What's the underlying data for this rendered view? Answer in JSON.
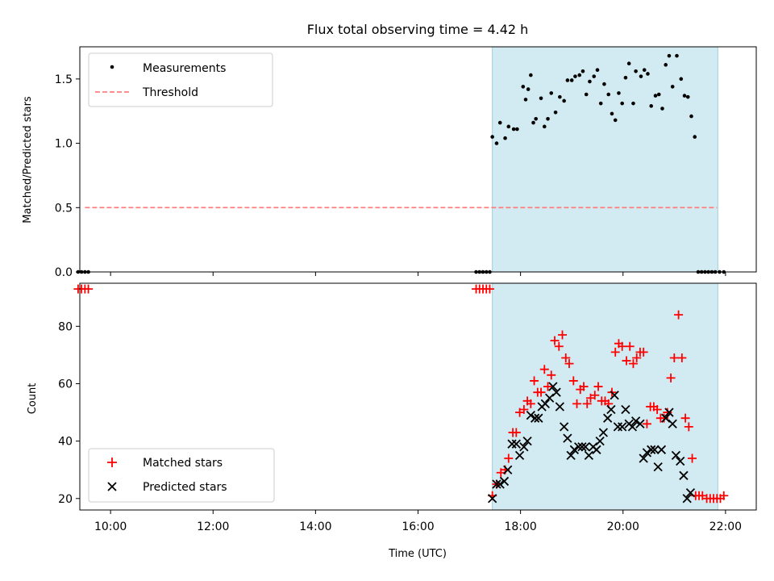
{
  "title": "Flux total observing time = 4.42 h",
  "colors": {
    "shade": "#add8e6",
    "threshold": "#ff7f7f",
    "matched": "#ff0000",
    "predicted": "#000000",
    "measurement": "#000000"
  },
  "chart_data": [
    {
      "type": "scatter",
      "panel": "top",
      "ylabel": "Matched/Predicted stars",
      "xlim": [
        "09:24",
        "22:36"
      ],
      "ylim": [
        0,
        1.75
      ],
      "yticks": [
        0.0,
        0.5,
        1.0,
        1.5
      ],
      "ytick_labels": [
        "0.0",
        "0.5",
        "1.0",
        "1.5"
      ],
      "legend_position": "top-left",
      "observing_window": [
        "17:27",
        "21:51"
      ],
      "series": [
        {
          "name": "Measurements",
          "marker": "dot",
          "x": [
            "09:22",
            "09:26",
            "09:30",
            "09:34",
            "17:08",
            "17:12",
            "17:16",
            "17:20",
            "17:24",
            "17:27",
            "17:32",
            "17:36",
            "17:42",
            "17:46",
            "17:52",
            "17:56",
            "18:03",
            "18:06",
            "18:09",
            "18:12",
            "18:15",
            "18:18",
            "18:24",
            "18:28",
            "18:32",
            "18:36",
            "18:41",
            "18:46",
            "18:51",
            "18:55",
            "19:00",
            "19:04",
            "19:09",
            "19:13",
            "19:17",
            "19:21",
            "19:26",
            "19:30",
            "19:34",
            "19:38",
            "19:43",
            "19:47",
            "19:51",
            "19:55",
            "19:59",
            "20:03",
            "20:07",
            "20:12",
            "20:15",
            "20:21",
            "20:25",
            "20:29",
            "20:33",
            "20:38",
            "20:42",
            "20:46",
            "20:50",
            "20:54",
            "20:58",
            "21:03",
            "21:08",
            "21:12",
            "21:16",
            "21:20",
            "21:24",
            "21:28",
            "21:32",
            "21:36",
            "21:40",
            "21:44",
            "21:48",
            "21:53",
            "21:58"
          ],
          "y": [
            0,
            0,
            0,
            0,
            0,
            0,
            0,
            0,
            0,
            1.05,
            1.0,
            1.16,
            1.04,
            1.13,
            1.11,
            1.11,
            1.44,
            1.34,
            1.42,
            1.53,
            1.16,
            1.19,
            1.35,
            1.13,
            1.19,
            1.39,
            1.24,
            1.36,
            1.33,
            1.49,
            1.49,
            1.52,
            1.53,
            1.56,
            1.38,
            1.48,
            1.52,
            1.57,
            1.31,
            1.46,
            1.38,
            1.23,
            1.18,
            1.39,
            1.31,
            1.51,
            1.62,
            1.31,
            1.56,
            1.52,
            1.57,
            1.54,
            1.29,
            1.37,
            1.38,
            1.27,
            1.61,
            1.68,
            1.44,
            1.68,
            1.5,
            1.37,
            1.36,
            1.21,
            1.05,
            0,
            0,
            0,
            0,
            0,
            0,
            0,
            0.0
          ]
        }
      ],
      "threshold": {
        "name": "Threshold",
        "y": 0.5,
        "x_range": [
          "09:30",
          "21:50"
        ]
      }
    },
    {
      "type": "scatter",
      "panel": "bottom",
      "xlabel": "Time (UTC)",
      "ylabel": "Count",
      "xlim": [
        "09:24",
        "22:36"
      ],
      "ylim": [
        16,
        95
      ],
      "yticks": [
        20,
        40,
        60,
        80
      ],
      "xticks": [
        "10:00",
        "12:00",
        "14:00",
        "16:00",
        "18:00",
        "20:00",
        "22:00"
      ],
      "legend_position": "bottom-left",
      "observing_window": [
        "17:27",
        "21:51"
      ],
      "series": [
        {
          "name": "Matched stars",
          "marker": "plus",
          "x": [
            "09:22",
            "09:26",
            "09:30",
            "09:34",
            "17:08",
            "17:12",
            "17:16",
            "17:20",
            "17:24",
            "17:27",
            "17:32",
            "17:37",
            "17:42",
            "17:46",
            "17:51",
            "17:55",
            "17:59",
            "18:04",
            "18:08",
            "18:12",
            "18:16",
            "18:20",
            "18:24",
            "18:28",
            "18:32",
            "18:36",
            "18:40",
            "18:45",
            "18:49",
            "18:53",
            "18:57",
            "19:02",
            "19:06",
            "19:10",
            "19:14",
            "19:18",
            "19:22",
            "19:27",
            "19:31",
            "19:35",
            "19:39",
            "19:43",
            "19:47",
            "19:51",
            "19:55",
            "19:59",
            "20:04",
            "20:08",
            "20:12",
            "20:16",
            "20:20",
            "20:24",
            "20:28",
            "20:32",
            "20:36",
            "20:40",
            "20:44",
            "20:48",
            "20:52",
            "20:56",
            "21:00",
            "21:05",
            "21:09",
            "21:13",
            "21:17",
            "21:21",
            "21:25",
            "21:29",
            "21:33",
            "21:38",
            "21:42",
            "21:46",
            "21:50",
            "21:54",
            "21:58"
          ],
          "y": [
            93,
            93,
            93,
            93,
            93,
            93,
            93,
            93,
            93,
            21,
            25,
            29,
            30,
            34,
            43,
            43,
            50,
            51,
            54,
            53,
            61,
            57,
            57,
            65,
            59,
            63,
            75,
            73,
            77,
            69,
            67,
            61,
            53,
            58,
            59,
            53,
            55,
            56,
            59,
            54,
            54,
            53,
            57,
            71,
            74,
            73,
            68,
            73,
            67,
            69,
            71,
            71,
            46,
            52,
            52,
            51,
            48,
            48,
            50,
            62,
            69,
            84,
            69,
            48,
            45,
            34,
            21,
            21,
            21,
            20,
            20,
            20,
            20,
            20,
            21
          ]
        },
        {
          "name": "Predicted stars",
          "marker": "cross",
          "x": [
            "17:27",
            "17:32",
            "17:36",
            "17:41",
            "17:45",
            "17:50",
            "17:55",
            "17:59",
            "18:04",
            "18:08",
            "18:12",
            "18:17",
            "18:21",
            "18:25",
            "18:29",
            "18:34",
            "18:38",
            "18:42",
            "18:46",
            "18:51",
            "18:55",
            "18:59",
            "19:03",
            "19:08",
            "19:12",
            "19:16",
            "19:20",
            "19:25",
            "19:29",
            "19:33",
            "19:37",
            "19:42",
            "19:46",
            "19:50",
            "19:54",
            "19:59",
            "20:03",
            "20:07",
            "20:11",
            "20:15",
            "20:20",
            "20:24",
            "20:28",
            "20:33",
            "20:37",
            "20:41",
            "20:45",
            "20:50",
            "20:54",
            "20:58",
            "21:02",
            "21:07",
            "21:11",
            "21:15",
            "21:19",
            "21:24",
            "21:28",
            "21:33",
            "21:38",
            "21:42",
            "21:47",
            "21:51"
          ],
          "y": [
            20,
            25,
            25,
            26,
            30,
            39,
            39,
            35,
            38,
            40,
            49,
            48,
            48,
            52,
            53,
            55,
            59,
            57,
            52,
            45,
            41,
            35,
            37,
            38,
            38,
            38,
            35,
            38,
            37,
            40,
            43,
            48,
            51,
            56,
            45,
            45,
            51,
            46,
            45,
            47,
            46,
            34,
            36,
            37,
            37,
            31,
            37,
            48,
            50,
            46,
            35,
            33,
            28,
            20,
            22,
            null,
            null,
            null,
            null,
            null,
            null,
            null
          ]
        }
      ]
    }
  ]
}
